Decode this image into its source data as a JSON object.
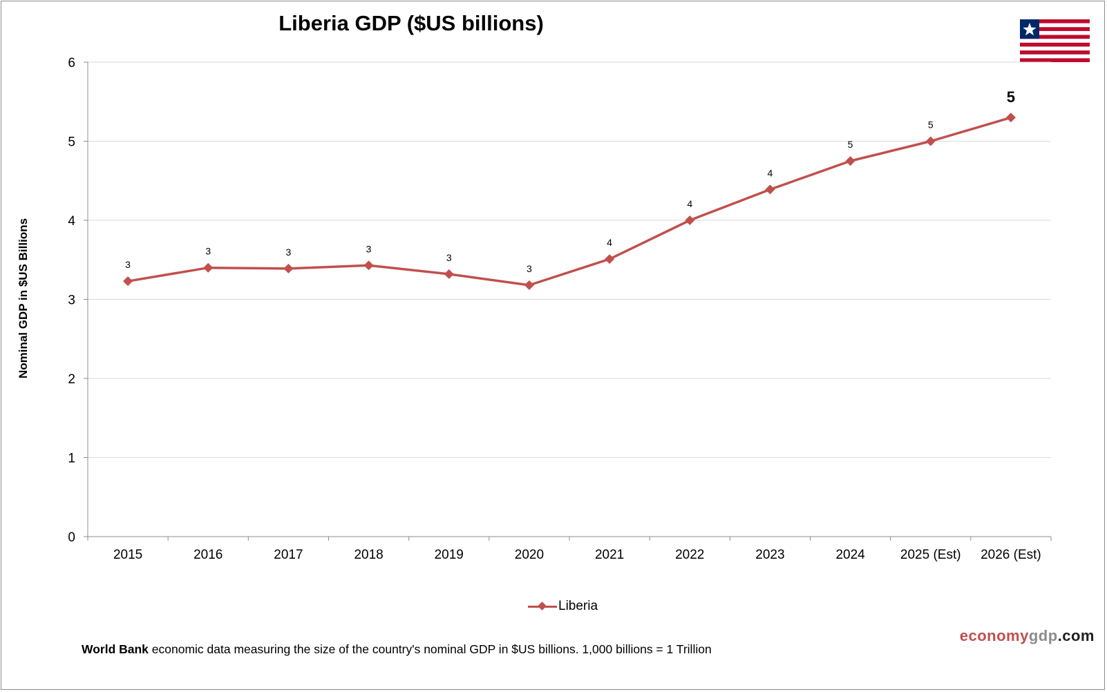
{
  "chart_data": {
    "type": "line",
    "title": "Liberia GDP ($US billions)",
    "ylabel": "Nominal GDP in $US Billions",
    "xlabel": "",
    "categories": [
      "2015",
      "2016",
      "2017",
      "2018",
      "2019",
      "2020",
      "2021",
      "2022",
      "2023",
      "2024",
      "2025 (Est)",
      "2026 (Est)"
    ],
    "series": [
      {
        "name": "Liberia",
        "color": "#c0504d",
        "values": [
          3.23,
          3.4,
          3.39,
          3.43,
          3.32,
          3.18,
          3.51,
          4.0,
          4.39,
          4.75,
          5.0,
          5.3
        ],
        "data_labels": [
          "3",
          "3",
          "3",
          "3",
          "3",
          "3",
          "4",
          "4",
          "4",
          "5",
          "5",
          "5"
        ]
      }
    ],
    "ylim": [
      0,
      6
    ],
    "yticks": [
      "0",
      "1",
      "2",
      "3",
      "4",
      "5",
      "6"
    ],
    "grid": true,
    "legend": "bottom-center"
  },
  "legend_label": "Liberia",
  "brand": {
    "part1": "economy",
    "part2": "gdp",
    "part3": ".com"
  },
  "footnote": {
    "bold": "World Bank",
    "text": " economic data  measuring  the size of the country's nominal  GDP in $US billions.  1,000 billions = 1 Trillion"
  },
  "flag_icon": "liberia-flag-icon"
}
